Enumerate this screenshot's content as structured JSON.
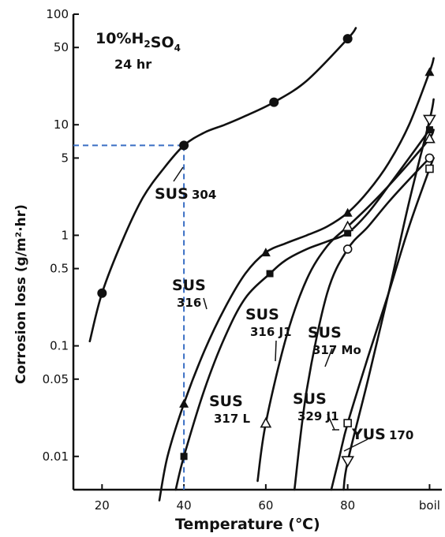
{
  "chart_data": {
    "type": "line",
    "title": "",
    "annotation": {
      "line1": "10%H2SO4",
      "line2": "24 hr"
    },
    "xlabel": "Temperature (℃)",
    "ylabel": "Corrosion loss (g/m²·hr)",
    "yscale": "log",
    "ylim": [
      0.005,
      100
    ],
    "xlim": [
      13,
      103
    ],
    "x_ticks": [
      {
        "value": 20,
        "label": "20"
      },
      {
        "value": 40,
        "label": "40"
      },
      {
        "value": 60,
        "label": "60"
      },
      {
        "value": 80,
        "label": "80"
      },
      {
        "value": 100,
        "label": "boil"
      }
    ],
    "y_ticks": [
      {
        "value": 0.01,
        "label": "0.01"
      },
      {
        "value": 0.05,
        "label": "0.05"
      },
      {
        "value": 0.1,
        "label": "0.1"
      },
      {
        "value": 0.5,
        "label": "0.5"
      },
      {
        "value": 1,
        "label": "1"
      },
      {
        "value": 5,
        "label": "5"
      },
      {
        "value": 10,
        "label": "10"
      },
      {
        "value": 50,
        "label": "50"
      },
      {
        "value": 100,
        "label": "100"
      }
    ],
    "reference_point": {
      "x": 40,
      "y": 6.5
    },
    "series": [
      {
        "name": "SUS 304",
        "marker": "circle-filled",
        "points": [
          [
            20,
            0.3
          ],
          [
            40,
            6.5
          ],
          [
            62,
            16
          ],
          [
            80,
            60
          ]
        ],
        "curve": [
          [
            17,
            0.11
          ],
          [
            20,
            0.3
          ],
          [
            25,
            0.9
          ],
          [
            30,
            2.2
          ],
          [
            35,
            4.0
          ],
          [
            40,
            6.5
          ],
          [
            45,
            8.5
          ],
          [
            50,
            10
          ],
          [
            55,
            12
          ],
          [
            62,
            16
          ],
          [
            70,
            25
          ],
          [
            80,
            60
          ],
          [
            82,
            75
          ]
        ]
      },
      {
        "name": "SUS 316",
        "marker": "triangle-filled",
        "points": [
          [
            40,
            0.03
          ],
          [
            60,
            0.7
          ],
          [
            80,
            1.6
          ],
          [
            100,
            30
          ]
        ],
        "curve": [
          [
            34,
            0.004
          ],
          [
            36,
            0.01
          ],
          [
            40,
            0.03
          ],
          [
            45,
            0.09
          ],
          [
            50,
            0.22
          ],
          [
            55,
            0.45
          ],
          [
            60,
            0.7
          ],
          [
            65,
            0.85
          ],
          [
            70,
            1.0
          ],
          [
            75,
            1.2
          ],
          [
            80,
            1.6
          ],
          [
            85,
            2.5
          ],
          [
            90,
            4.5
          ],
          [
            95,
            10
          ],
          [
            100,
            30
          ],
          [
            101,
            40
          ]
        ]
      },
      {
        "name": "SUS 317L",
        "marker": "square-filled",
        "points": [
          [
            40,
            0.01
          ],
          [
            61,
            0.45
          ],
          [
            80,
            1.05
          ],
          [
            100,
            9
          ]
        ],
        "curve": [
          [
            38,
            0.005
          ],
          [
            40,
            0.01
          ],
          [
            45,
            0.04
          ],
          [
            50,
            0.12
          ],
          [
            55,
            0.27
          ],
          [
            61,
            0.45
          ],
          [
            65,
            0.6
          ],
          [
            70,
            0.75
          ],
          [
            75,
            0.88
          ],
          [
            80,
            1.05
          ],
          [
            85,
            1.6
          ],
          [
            90,
            2.8
          ],
          [
            95,
            5
          ],
          [
            100,
            9
          ]
        ]
      },
      {
        "name": "SUS 316 J1",
        "marker": "triangle-open",
        "points": [
          [
            60,
            0.02
          ],
          [
            80,
            1.2
          ],
          [
            100,
            7.5
          ]
        ],
        "curve": [
          [
            58,
            0.006
          ],
          [
            60,
            0.02
          ],
          [
            65,
            0.12
          ],
          [
            70,
            0.4
          ],
          [
            75,
            0.8
          ],
          [
            80,
            1.2
          ],
          [
            85,
            1.8
          ],
          [
            90,
            2.8
          ],
          [
            95,
            4.5
          ],
          [
            100,
            7.5
          ],
          [
            101,
            9
          ]
        ]
      },
      {
        "name": "SUS 317 Mo",
        "marker": "circle-open",
        "points": [
          [
            80,
            0.75
          ],
          [
            100,
            5
          ]
        ],
        "curve": [
          [
            67,
            0.005
          ],
          [
            70,
            0.04
          ],
          [
            75,
            0.3
          ],
          [
            80,
            0.75
          ],
          [
            85,
            1.2
          ],
          [
            90,
            2.0
          ],
          [
            95,
            3.2
          ],
          [
            100,
            5
          ]
        ]
      },
      {
        "name": "SUS 329 J1",
        "marker": "square-open",
        "points": [
          [
            80,
            0.02
          ],
          [
            100,
            4
          ]
        ],
        "curve": [
          [
            76,
            0.005
          ],
          [
            78,
            0.01
          ],
          [
            80,
            0.02
          ],
          [
            85,
            0.08
          ],
          [
            90,
            0.3
          ],
          [
            95,
            1.2
          ],
          [
            100,
            4
          ],
          [
            101,
            5
          ]
        ]
      },
      {
        "name": "YUS 170",
        "marker": "triangle-down-open",
        "points": [
          [
            80,
            0.009
          ],
          [
            100,
            11
          ]
        ],
        "curve": [
          [
            79,
            0.005
          ],
          [
            80,
            0.009
          ],
          [
            85,
            0.05
          ],
          [
            90,
            0.3
          ],
          [
            95,
            2.0
          ],
          [
            100,
            11
          ],
          [
            101,
            17
          ]
        ]
      }
    ],
    "labels": [
      {
        "series": "SUS 304",
        "main": "SUS",
        "sub": "304"
      },
      {
        "series": "SUS 316",
        "main": "SUS",
        "sub": "316"
      },
      {
        "series": "SUS 316 J1",
        "main": "SUS",
        "sub": "316 J1"
      },
      {
        "series": "SUS 317 Mo",
        "main": "SUS",
        "sub": "317 Mo"
      },
      {
        "series": "SUS 317L",
        "main": "SUS",
        "sub": "317 L"
      },
      {
        "series": "SUS 329 J1",
        "main": "SUS",
        "sub": "329 J1"
      },
      {
        "series": "YUS 170",
        "main": "YUS",
        "sub": "170"
      }
    ],
    "grid": false,
    "legend": "none",
    "colors": {
      "line": "#111111",
      "reference": "#3a6fc4"
    }
  }
}
